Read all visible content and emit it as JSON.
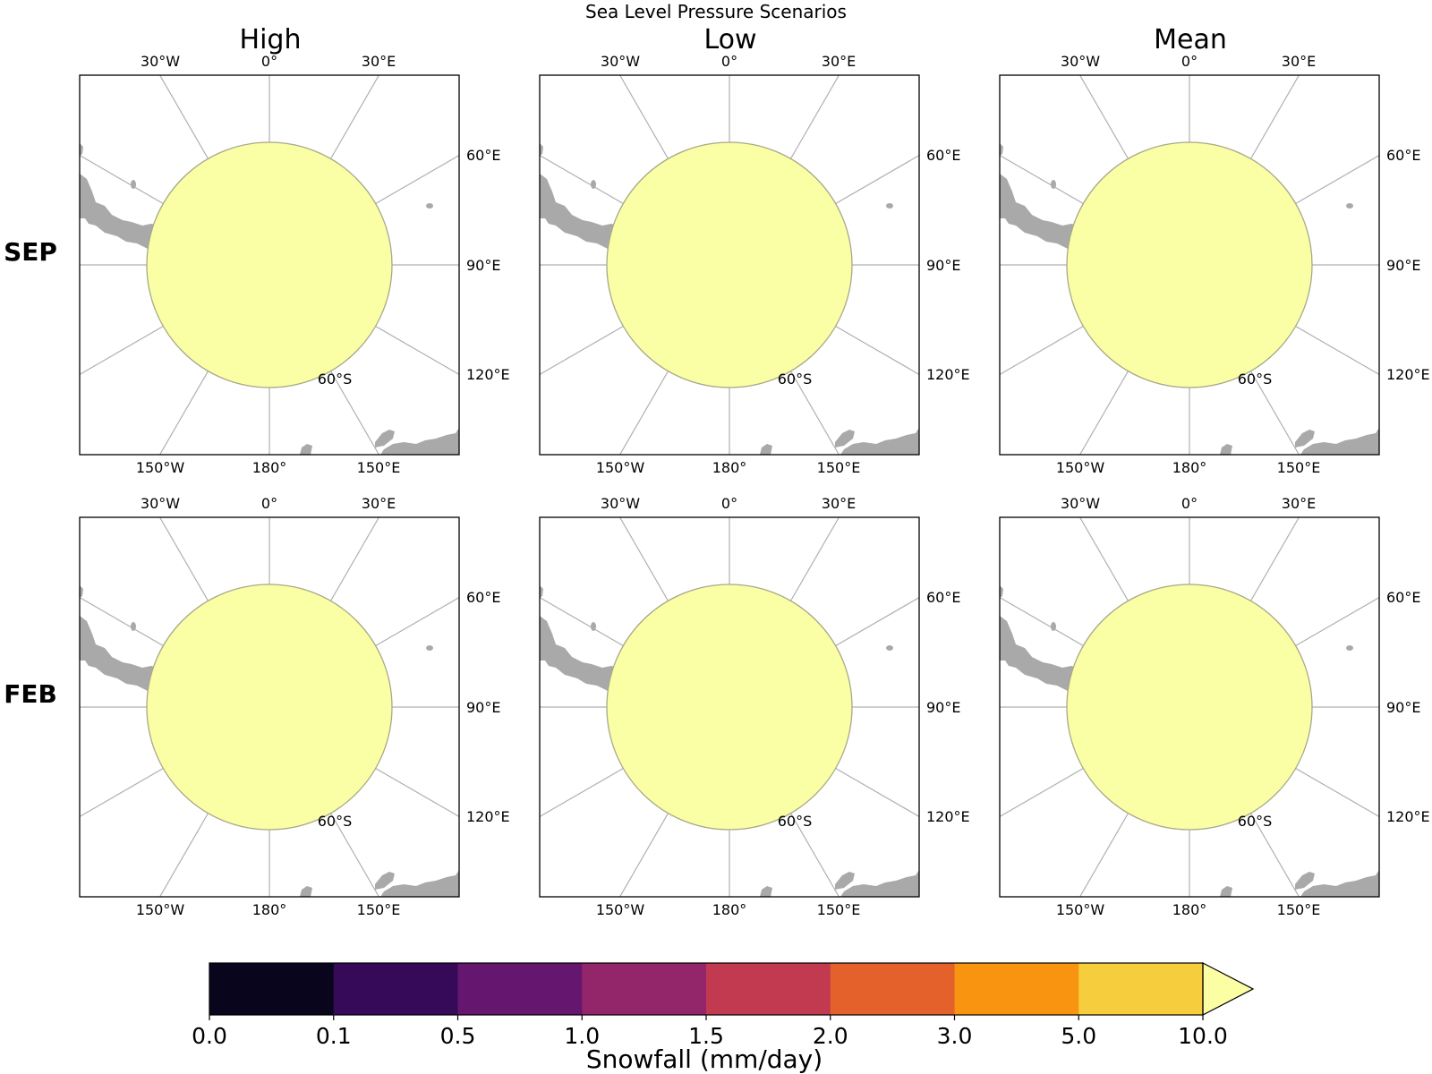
{
  "figure": {
    "suptitle": "Sea Level Pressure Scenarios",
    "column_titles": [
      "High",
      "Low",
      "Mean"
    ],
    "row_labels": [
      "SEP",
      "FEB"
    ]
  },
  "map": {
    "projection": "south-polar-stereographic",
    "lon_labels_top": [
      "30°W",
      "0°",
      "30°E"
    ],
    "lon_labels_right": [
      "60°E",
      "90°E",
      "120°E"
    ],
    "lon_labels_bottom": [
      "150°W",
      "180°",
      "150°E"
    ],
    "lat_label": "60°S",
    "field_value_everywhere": "> 10.0",
    "colors": {
      "field": "#fafea4",
      "land": "#a9a9a9",
      "gridline": "#b0b0b0"
    }
  },
  "colorbar": {
    "label": "Snowfall (mm/day)",
    "ticks": [
      "0.0",
      "0.1",
      "0.5",
      "1.0",
      "1.5",
      "2.0",
      "3.0",
      "5.0",
      "10.0"
    ],
    "colors": [
      "#08051d",
      "#360a59",
      "#65166e",
      "#93256b",
      "#c23a50",
      "#e4612b",
      "#f89410",
      "#f6cd3c"
    ],
    "extend_color": "#fcfea4",
    "extend": "max",
    "cmap": "inferno"
  }
}
